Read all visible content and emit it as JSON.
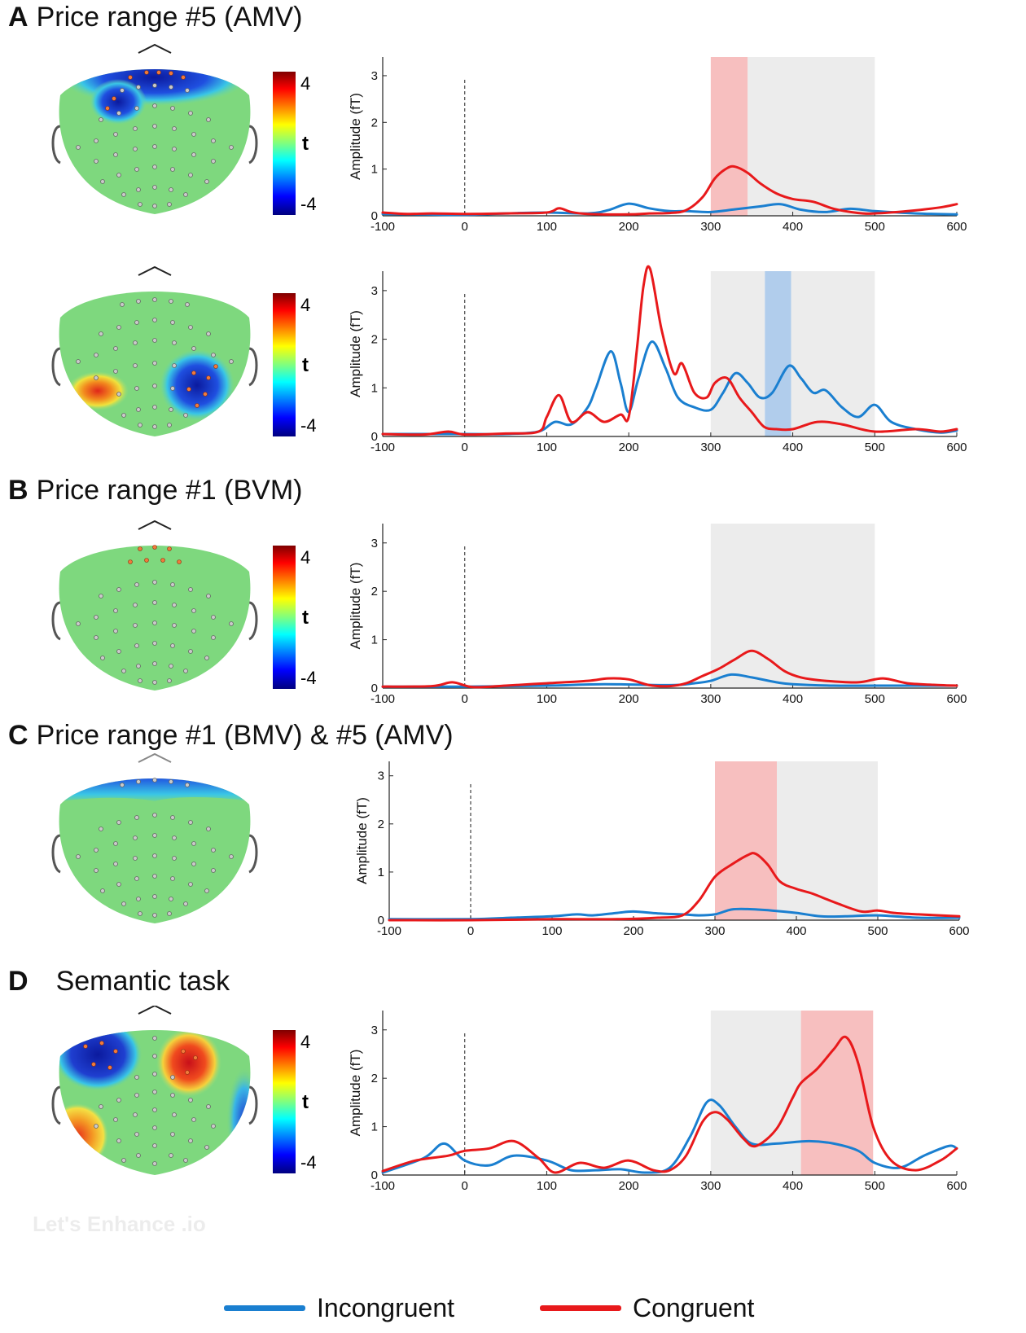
{
  "colors": {
    "incongruent": "#1a7fd0",
    "congruent": "#e8191b",
    "red_window": "#f6b8b8",
    "blue_window": "#a9c8ea",
    "gray_window": "#e9e9e9"
  },
  "legend": {
    "incongruent": "Incongruent",
    "congruent": "Congruent"
  },
  "colorbar": {
    "max_label": "4",
    "mid_label": "t",
    "min_label": "-4"
  },
  "watermark": "Let's Enhance .io",
  "panels": [
    {
      "letter": "A",
      "title": "Price range #5 (AMV)"
    },
    {
      "letter": "B",
      "title": "Price range #1 (BVM)"
    },
    {
      "letter": "C",
      "title": "Price range #1 (BMV) & #5 (AMV)"
    },
    {
      "letter": "D",
      "title": "Semantic task"
    }
  ],
  "chart_data": [
    {
      "type": "line",
      "id": "A1",
      "xlabel": "",
      "ylabel": "Amplitude (fT)",
      "xlim": [
        -100,
        600
      ],
      "ylim": [
        0,
        3.4
      ],
      "xticks": [
        -100,
        0,
        100,
        200,
        300,
        400,
        500,
        600
      ],
      "yticks": [
        0,
        1,
        2,
        3
      ],
      "windows": [
        {
          "from": 300,
          "to": 345,
          "kind": "red"
        },
        {
          "from": 345,
          "to": 500,
          "kind": "gray"
        }
      ],
      "series": [
        {
          "name": "Incongruent",
          "x": [
            -100,
            -50,
            0,
            50,
            100,
            150,
            175,
            200,
            225,
            250,
            270,
            300,
            330,
            360,
            385,
            410,
            440,
            470,
            500,
            550,
            600
          ],
          "values": [
            0.04,
            0.03,
            0.02,
            0.05,
            0.07,
            0.05,
            0.12,
            0.26,
            0.16,
            0.1,
            0.1,
            0.08,
            0.14,
            0.2,
            0.25,
            0.13,
            0.08,
            0.15,
            0.1,
            0.05,
            0.03
          ]
        },
        {
          "name": "Congruent",
          "x": [
            -100,
            -70,
            -40,
            0,
            50,
            100,
            115,
            130,
            150,
            200,
            225,
            250,
            270,
            290,
            305,
            320,
            330,
            345,
            360,
            380,
            400,
            425,
            450,
            480,
            500,
            540,
            580,
            600
          ],
          "values": [
            0.07,
            0.04,
            0.05,
            0.04,
            0.05,
            0.07,
            0.16,
            0.08,
            0.04,
            0.03,
            0.05,
            0.06,
            0.12,
            0.4,
            0.8,
            1.02,
            1.05,
            0.92,
            0.7,
            0.48,
            0.36,
            0.3,
            0.15,
            0.06,
            0.05,
            0.1,
            0.18,
            0.25
          ]
        }
      ]
    },
    {
      "type": "line",
      "id": "A2",
      "xlabel": "",
      "ylabel": "Amplitude (fT)",
      "xlim": [
        -100,
        600
      ],
      "ylim": [
        0,
        3.4
      ],
      "xticks": [
        -100,
        0,
        100,
        200,
        300,
        400,
        500,
        600
      ],
      "yticks": [
        0,
        1,
        2,
        3
      ],
      "windows": [
        {
          "from": 300,
          "to": 366,
          "kind": "gray"
        },
        {
          "from": 366,
          "to": 398,
          "kind": "blue"
        },
        {
          "from": 398,
          "to": 500,
          "kind": "gray"
        }
      ],
      "series": [
        {
          "name": "Incongruent",
          "x": [
            -100,
            -50,
            0,
            50,
            90,
            110,
            130,
            150,
            160,
            178,
            190,
            200,
            212,
            228,
            245,
            260,
            280,
            300,
            315,
            330,
            345,
            360,
            375,
            395,
            410,
            425,
            440,
            460,
            480,
            500,
            520,
            550,
            580,
            600
          ],
          "values": [
            0.05,
            0.05,
            0.05,
            0.05,
            0.1,
            0.3,
            0.25,
            0.6,
            1.0,
            1.75,
            1.1,
            0.5,
            1.2,
            1.95,
            1.4,
            0.8,
            0.6,
            0.55,
            0.9,
            1.3,
            1.1,
            0.8,
            0.9,
            1.45,
            1.2,
            0.9,
            0.95,
            0.6,
            0.4,
            0.65,
            0.3,
            0.15,
            0.08,
            0.12
          ]
        },
        {
          "name": "Congruent",
          "x": [
            -100,
            -50,
            -20,
            0,
            50,
            90,
            100,
            115,
            130,
            150,
            170,
            190,
            200,
            210,
            218,
            226,
            240,
            255,
            265,
            280,
            295,
            305,
            320,
            335,
            350,
            365,
            380,
            400,
            430,
            460,
            500,
            550,
            580,
            600
          ],
          "values": [
            0.05,
            0.04,
            0.1,
            0.04,
            0.06,
            0.1,
            0.4,
            0.85,
            0.3,
            0.5,
            0.3,
            0.45,
            0.4,
            1.8,
            3.1,
            3.45,
            2.2,
            1.3,
            1.5,
            0.9,
            0.8,
            1.1,
            1.2,
            0.8,
            0.5,
            0.2,
            0.15,
            0.15,
            0.3,
            0.25,
            0.1,
            0.15,
            0.1,
            0.15
          ]
        }
      ]
    },
    {
      "type": "line",
      "id": "B",
      "xlabel": "",
      "ylabel": "Amplitude (fT)",
      "xlim": [
        -100,
        600
      ],
      "ylim": [
        0,
        3.4
      ],
      "xticks": [
        -100,
        0,
        100,
        200,
        300,
        400,
        500,
        600
      ],
      "yticks": [
        0,
        1,
        2,
        3
      ],
      "windows": [
        {
          "from": 300,
          "to": 500,
          "kind": "gray"
        }
      ],
      "series": [
        {
          "name": "Incongruent",
          "x": [
            -100,
            0,
            100,
            170,
            250,
            280,
            300,
            325,
            350,
            380,
            400,
            450,
            500,
            550,
            600
          ],
          "values": [
            0.03,
            0.03,
            0.05,
            0.08,
            0.06,
            0.1,
            0.15,
            0.28,
            0.22,
            0.12,
            0.08,
            0.05,
            0.05,
            0.05,
            0.05
          ]
        },
        {
          "name": "Congruent",
          "x": [
            -100,
            -40,
            -15,
            10,
            50,
            100,
            150,
            175,
            200,
            225,
            250,
            270,
            290,
            310,
            330,
            350,
            370,
            390,
            410,
            440,
            480,
            510,
            540,
            580,
            600
          ],
          "values": [
            0.03,
            0.04,
            0.12,
            0.02,
            0.05,
            0.1,
            0.15,
            0.2,
            0.18,
            0.06,
            0.04,
            0.1,
            0.25,
            0.4,
            0.6,
            0.77,
            0.6,
            0.35,
            0.22,
            0.15,
            0.12,
            0.2,
            0.1,
            0.06,
            0.05
          ]
        }
      ]
    },
    {
      "type": "line",
      "id": "C",
      "xlabel": "",
      "ylabel": "Amplitude (fT)",
      "xlim": [
        -100,
        600
      ],
      "ylim": [
        0,
        3.3
      ],
      "xticks": [
        -100,
        0,
        100,
        200,
        300,
        400,
        500,
        600
      ],
      "yticks": [
        0,
        1,
        2,
        3
      ],
      "windows": [
        {
          "from": 300,
          "to": 376,
          "kind": "red"
        },
        {
          "from": 376,
          "to": 500,
          "kind": "gray"
        }
      ],
      "series": [
        {
          "name": "Incongruent",
          "x": [
            -100,
            0,
            50,
            100,
            130,
            150,
            180,
            200,
            230,
            260,
            280,
            300,
            320,
            340,
            370,
            400,
            430,
            460,
            500,
            550,
            600
          ],
          "values": [
            0.02,
            0.02,
            0.05,
            0.08,
            0.12,
            0.1,
            0.15,
            0.18,
            0.14,
            0.12,
            0.1,
            0.12,
            0.22,
            0.23,
            0.2,
            0.15,
            0.08,
            0.08,
            0.1,
            0.05,
            0.05
          ]
        },
        {
          "name": "Congruent",
          "x": [
            -100,
            0,
            100,
            180,
            230,
            260,
            280,
            300,
            320,
            340,
            350,
            365,
            380,
            400,
            420,
            450,
            480,
            500,
            520,
            550,
            600
          ],
          "values": [
            0.0,
            0.0,
            0.02,
            0.02,
            0.05,
            0.1,
            0.4,
            0.9,
            1.15,
            1.35,
            1.38,
            1.15,
            0.8,
            0.65,
            0.55,
            0.35,
            0.18,
            0.2,
            0.15,
            0.12,
            0.08
          ]
        }
      ]
    },
    {
      "type": "line",
      "id": "D",
      "xlabel": "",
      "ylabel": "Amplitude (fT)",
      "xlim": [
        -100,
        600
      ],
      "ylim": [
        0,
        3.4
      ],
      "xticks": [
        -100,
        0,
        100,
        200,
        300,
        400,
        500,
        600
      ],
      "yticks": [
        0,
        1,
        2,
        3
      ],
      "windows": [
        {
          "from": 300,
          "to": 410,
          "kind": "gray"
        },
        {
          "from": 410,
          "to": 498,
          "kind": "red"
        }
      ],
      "series": [
        {
          "name": "Incongruent",
          "x": [
            -100,
            -50,
            -25,
            0,
            30,
            60,
            100,
            130,
            160,
            190,
            220,
            250,
            275,
            295,
            310,
            330,
            350,
            380,
            420,
            450,
            480,
            500,
            530,
            560,
            590,
            600
          ],
          "values": [
            0.05,
            0.35,
            0.65,
            0.3,
            0.2,
            0.4,
            0.3,
            0.1,
            0.1,
            0.12,
            0.05,
            0.15,
            0.8,
            1.5,
            1.45,
            1.0,
            0.65,
            0.65,
            0.7,
            0.65,
            0.5,
            0.25,
            0.15,
            0.4,
            0.6,
            0.55
          ]
        },
        {
          "name": "Congruent",
          "x": [
            -100,
            -60,
            -20,
            0,
            30,
            60,
            90,
            110,
            140,
            170,
            200,
            230,
            250,
            270,
            290,
            305,
            320,
            340,
            355,
            380,
            400,
            410,
            430,
            450,
            465,
            480,
            498,
            520,
            550,
            580,
            600
          ],
          "values": [
            0.08,
            0.3,
            0.4,
            0.5,
            0.55,
            0.7,
            0.35,
            0.05,
            0.25,
            0.15,
            0.3,
            0.1,
            0.1,
            0.4,
            1.1,
            1.3,
            1.15,
            0.75,
            0.6,
            0.95,
            1.6,
            1.9,
            2.2,
            2.6,
            2.85,
            2.3,
            1.0,
            0.3,
            0.1,
            0.3,
            0.55
          ]
        }
      ]
    }
  ]
}
